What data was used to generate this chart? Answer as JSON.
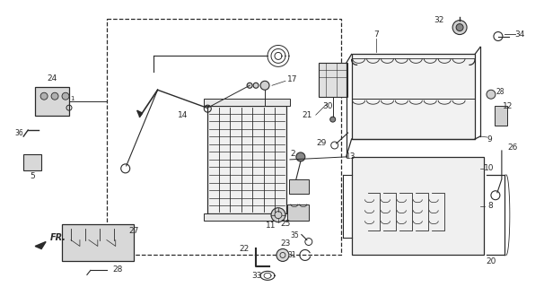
{
  "bg_color": "#ffffff",
  "fg_color": "#2a2a2a",
  "fig_width": 6.06,
  "fig_height": 3.2,
  "dpi": 100
}
